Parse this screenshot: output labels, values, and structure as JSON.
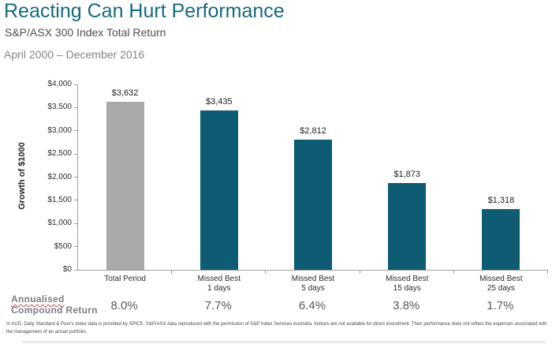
{
  "header": {
    "title": "Reacting Can Hurt Performance",
    "subtitle": "S&P/ASX 300 Index Total Return",
    "date_range": "April 2000 – December 2016"
  },
  "chart_data": {
    "type": "bar",
    "title": "Reacting Can Hurt Performance",
    "xlabel": "",
    "ylabel": "Growth of $1000",
    "ylim": [
      0,
      4000
    ],
    "grid": false,
    "legend": "none",
    "y_ticks": [
      {
        "value": 4000,
        "label": "$4,000"
      },
      {
        "value": 3500,
        "label": "$3,500"
      },
      {
        "value": 3000,
        "label": "$3,000"
      },
      {
        "value": 2500,
        "label": "$2,500"
      },
      {
        "value": 2000,
        "label": "$2,000"
      },
      {
        "value": 1500,
        "label": "$1,500"
      },
      {
        "value": 1000,
        "label": "$1,000"
      },
      {
        "value": 500,
        "label": "$500"
      },
      {
        "value": 0,
        "label": "$0"
      }
    ],
    "categories": [
      "Total Period",
      "Missed Best\n1 days",
      "Missed Best\n5 days",
      "Missed Best\n15 days",
      "Missed Best\n25 days"
    ],
    "values": [
      3632,
      3435,
      2812,
      1873,
      1318
    ],
    "bar_labels": [
      "$3,632",
      "$3,435",
      "$2,812",
      "$1,873",
      "$1,318"
    ],
    "bar_colors": [
      "#a9a9a9",
      "#0d5c74",
      "#0d5c74",
      "#0d5c74",
      "#0d5c74"
    ]
  },
  "annualised": {
    "label_line1": "Annualised",
    "label_line2": "Compound Return",
    "values": [
      "8.0%",
      "7.7%",
      "6.4%",
      "3.8%",
      "1.7%"
    ]
  },
  "footnote": "In AUD. Daily Standard & Poor's index data is provided by SPICE. S&P/ASX data reproduced with the permission of S&P Index Services Australia. Indices are not available for direct investment. Their performance does not reflect the expenses associated with the management of an actual portfolio.",
  "colors": {
    "title_teal": "#15697f",
    "bar_teal": "#0d5c74",
    "bar_gray": "#a9a9a9",
    "axis_gray": "#a0a0a0",
    "percent_text": "#595959"
  }
}
